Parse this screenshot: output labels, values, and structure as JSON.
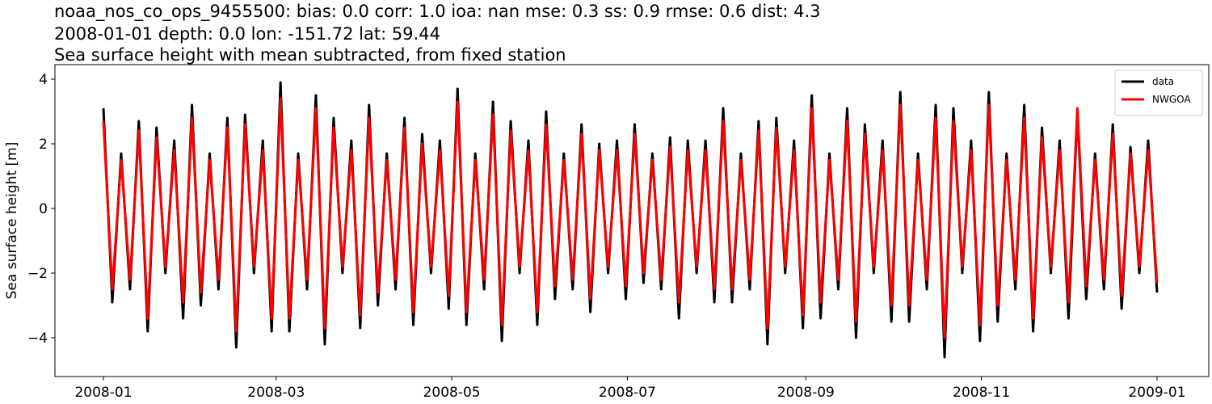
{
  "chart_data": {
    "type": "line",
    "title_lines": [
      "noaa_nos_co_ops_9455500: bias: 0.0  corr: 1.0  ioa: nan  mse: 0.3  ss: 0.9  rmse: 0.6  dist: 4.3",
      "2008-01-01 depth: 0.0 lon: -151.72 lat: 59.44",
      "Sea surface height with mean subtracted, from fixed station"
    ],
    "ylabel": "Sea surface height [m]",
    "xlim": [
      "2008-01",
      "2009-01"
    ],
    "xticks": [
      "2008-01",
      "2008-03",
      "2008-05",
      "2008-07",
      "2008-09",
      "2008-11",
      "2009-01"
    ],
    "ylim": [
      -5.2,
      4.45
    ],
    "yticks": [
      {
        "value": -4,
        "label": "−4"
      },
      {
        "value": -2,
        "label": "−2"
      },
      0,
      2,
      4
    ],
    "legend": "upper right",
    "series": [
      {
        "name": "data",
        "color": "#000000",
        "values": [
          3.1,
          -2.9,
          1.7,
          -2.5,
          2.7,
          -3.8,
          2.5,
          -2.0,
          2.1,
          -3.4,
          3.2,
          -3.0,
          1.7,
          -2.5,
          2.8,
          -4.3,
          2.9,
          -2.0,
          2.1,
          -3.8,
          3.9,
          -3.8,
          1.7,
          -2.5,
          3.5,
          -4.2,
          2.8,
          -2.0,
          2.1,
          -3.7,
          3.2,
          -3.0,
          1.7,
          -2.5,
          2.8,
          -3.6,
          2.3,
          -2.0,
          2.1,
          -3.1,
          3.7,
          -3.6,
          1.7,
          -2.5,
          3.3,
          -4.1,
          2.7,
          -2.0,
          2.1,
          -3.6,
          3.0,
          -2.8,
          1.7,
          -2.5,
          2.6,
          -3.2,
          2.0,
          -2.0,
          2.1,
          -2.8,
          2.6,
          -2.3,
          1.7,
          -2.5,
          2.2,
          -3.4,
          2.1,
          -2.0,
          2.1,
          -2.9,
          3.1,
          -2.9,
          1.7,
          -2.5,
          2.7,
          -4.2,
          2.8,
          -2.0,
          2.1,
          -3.7,
          3.5,
          -3.4,
          1.7,
          -2.5,
          3.1,
          -4.0,
          2.6,
          -2.0,
          2.1,
          -3.5,
          3.6,
          -3.5,
          1.7,
          -2.5,
          3.2,
          -4.6,
          3.1,
          -2.0,
          2.1,
          -4.1,
          3.6,
          -3.5,
          1.7,
          -2.5,
          3.2,
          -3.8,
          2.5,
          -2.0,
          2.1,
          -3.4,
          3.0,
          -2.8,
          1.7,
          -2.5,
          2.6,
          -3.1,
          1.9,
          -2.0,
          2.1,
          -2.6
        ]
      },
      {
        "name": "NWGOA",
        "color": "#ff0000",
        "values": [
          2.7,
          -2.5,
          1.5,
          -2.2,
          2.4,
          -3.4,
          2.2,
          -1.8,
          1.8,
          -2.9,
          2.8,
          -2.6,
          1.5,
          -2.2,
          2.5,
          -3.8,
          2.6,
          -1.8,
          1.8,
          -3.4,
          3.4,
          -3.4,
          1.5,
          -2.2,
          3.1,
          -3.7,
          2.5,
          -1.8,
          1.8,
          -3.3,
          2.8,
          -2.6,
          1.5,
          -2.2,
          2.5,
          -3.2,
          2.0,
          -1.8,
          1.8,
          -2.7,
          3.3,
          -3.2,
          1.5,
          -2.2,
          2.9,
          -3.6,
          2.4,
          -1.8,
          1.8,
          -3.2,
          2.6,
          -2.4,
          1.5,
          -2.2,
          2.3,
          -2.8,
          1.8,
          -1.8,
          1.8,
          -2.4,
          2.3,
          -2.0,
          1.5,
          -2.2,
          1.9,
          -2.9,
          1.8,
          -1.8,
          1.8,
          -2.5,
          2.7,
          -2.5,
          1.5,
          -2.2,
          2.4,
          -3.7,
          2.5,
          -1.8,
          1.8,
          -3.3,
          3.1,
          -2.9,
          1.5,
          -2.2,
          2.7,
          -3.5,
          2.3,
          -1.8,
          1.8,
          -3.0,
          3.2,
          -3.0,
          1.5,
          -2.2,
          2.8,
          -4.0,
          2.7,
          -1.8,
          1.8,
          -3.6,
          3.2,
          -3.0,
          1.5,
          -2.2,
          2.8,
          -3.4,
          2.2,
          -1.8,
          1.8,
          -2.9,
          3.1,
          -2.4,
          1.5,
          -2.2,
          2.3,
          -2.7,
          1.7,
          -1.8,
          1.8,
          -2.3
        ]
      }
    ]
  }
}
